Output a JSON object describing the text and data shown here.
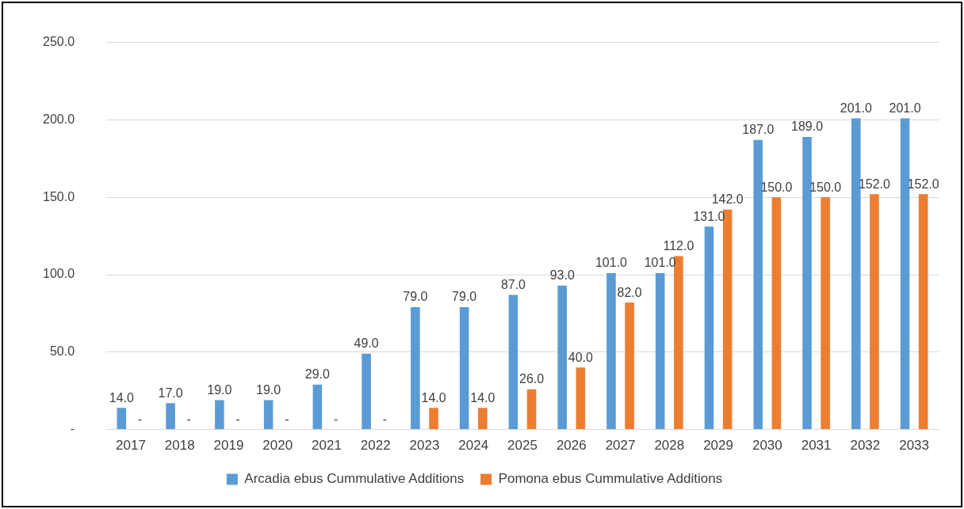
{
  "chart_data": {
    "type": "bar",
    "categories": [
      "2017",
      "2018",
      "2019",
      "2020",
      "2021",
      "2022",
      "2023",
      "2024",
      "2025",
      "2026",
      "2027",
      "2028",
      "2029",
      "2030",
      "2031",
      "2032",
      "2033"
    ],
    "series": [
      {
        "name": "Arcadia ebus Cummulative Additions",
        "color": "#5b9bd5",
        "values": [
          14,
          17,
          19,
          19,
          29,
          49,
          79,
          79,
          87,
          93,
          101,
          101,
          131,
          187,
          189,
          201,
          201
        ],
        "value_labels": [
          "14.0",
          "17.0",
          "19.0",
          "19.0",
          "29.0",
          "49.0",
          "79.0",
          "79.0",
          "87.0",
          "93.0",
          "101.0",
          "101.0",
          "131.0",
          "187.0",
          "189.0",
          "201.0",
          "201.0"
        ]
      },
      {
        "name": "Pomona ebus Cummulative Additions",
        "color": "#ed7d31",
        "values": [
          0,
          0,
          0,
          0,
          0,
          0,
          14,
          14,
          26,
          40,
          82,
          112,
          142,
          150,
          150,
          152,
          152
        ],
        "value_labels": [
          "-",
          "-",
          "-",
          "-",
          "-",
          "-",
          "14.0",
          "14.0",
          "26.0",
          "40.0",
          "82.0",
          "112.0",
          "142.0",
          "150.0",
          "150.0",
          "152.0",
          "152.0"
        ]
      }
    ],
    "ylim": [
      0,
      250
    ],
    "yticks": [
      {
        "value": 0,
        "label": "-"
      },
      {
        "value": 50,
        "label": "50.0"
      },
      {
        "value": 100,
        "label": "100.0"
      },
      {
        "value": 150,
        "label": "150.0"
      },
      {
        "value": 200,
        "label": "200.0"
      },
      {
        "value": 250,
        "label": "250.0"
      }
    ],
    "grid": "y",
    "legend": "bottom"
  }
}
